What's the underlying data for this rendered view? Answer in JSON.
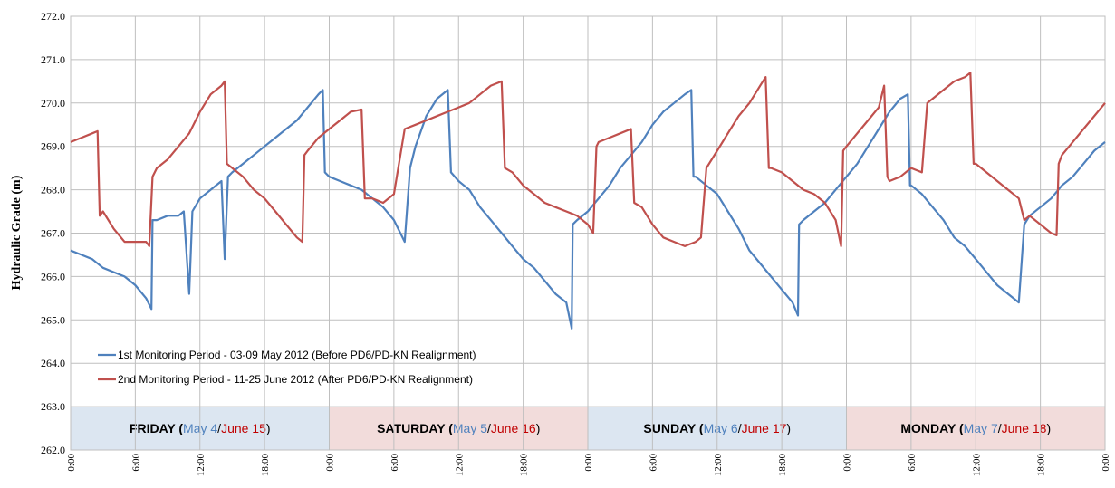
{
  "chart_data": {
    "type": "line",
    "y_label": "Hydraulic Grade (m)",
    "xlim": [
      0,
      96
    ],
    "xticks": [
      {
        "value": 0,
        "label": "0:00"
      },
      {
        "value": 6,
        "label": "6:00"
      },
      {
        "value": 12,
        "label": "12:00"
      },
      {
        "value": 18,
        "label": "18:00"
      },
      {
        "value": 24,
        "label": "0:00"
      },
      {
        "value": 30,
        "label": "6:00"
      },
      {
        "value": 36,
        "label": "12:00"
      },
      {
        "value": 42,
        "label": "18:00"
      },
      {
        "value": 48,
        "label": "0:00"
      },
      {
        "value": 54,
        "label": "6:00"
      },
      {
        "value": 60,
        "label": "12:00"
      },
      {
        "value": 66,
        "label": "18:00"
      },
      {
        "value": 72,
        "label": "0:00"
      },
      {
        "value": 78,
        "label": "6:00"
      },
      {
        "value": 84,
        "label": "12:00"
      },
      {
        "value": 90,
        "label": "18:00"
      },
      {
        "value": 96,
        "label": "0:00"
      }
    ],
    "ylim": [
      262,
      272
    ],
    "yticks": [
      {
        "value": 262,
        "label": "262.0"
      },
      {
        "value": 263,
        "label": "263.0"
      },
      {
        "value": 264,
        "label": "264.0"
      },
      {
        "value": 265,
        "label": "265.0"
      },
      {
        "value": 266,
        "label": "266.0"
      },
      {
        "value": 267,
        "label": "267.0"
      },
      {
        "value": 268,
        "label": "268.0"
      },
      {
        "value": 269,
        "label": "269.0"
      },
      {
        "value": 270,
        "label": "270.0"
      },
      {
        "value": 271,
        "label": "271.0"
      },
      {
        "value": 272,
        "label": "272.0"
      }
    ],
    "grid": true,
    "legend_position": "lower left",
    "day_bands": [
      {
        "start": 0,
        "end": 24,
        "color": "#dce6f1",
        "parts": [
          "FRIDAY (",
          "May 4",
          "/",
          "June 15",
          ")"
        ],
        "part_colors": [
          "#000000",
          "#4f81bd",
          "#000000",
          "#c00000",
          "#000000"
        ]
      },
      {
        "start": 24,
        "end": 48,
        "color": "#f2dcdb",
        "parts": [
          "SATURDAY (",
          "May 5",
          "/",
          "June 16",
          ")"
        ],
        "part_colors": [
          "#000000",
          "#4f81bd",
          "#000000",
          "#c00000",
          "#000000"
        ]
      },
      {
        "start": 48,
        "end": 72,
        "color": "#dce6f1",
        "parts": [
          "SUNDAY (",
          "May 6",
          "/",
          "June 17",
          ")"
        ],
        "part_colors": [
          "#000000",
          "#4f81bd",
          "#000000",
          "#c00000",
          "#000000"
        ]
      },
      {
        "start": 72,
        "end": 96,
        "color": "#f2dcdb",
        "parts": [
          "MONDAY (",
          "May 7",
          "/",
          "June 18",
          ")"
        ],
        "part_colors": [
          "#000000",
          "#4f81bd",
          "#000000",
          "#c00000",
          "#000000"
        ]
      }
    ],
    "series": [
      {
        "name": "1st Monitoring Period - 03-09 May 2012 (Before PD6/PD-KN Realignment)",
        "color": "#4f81bd",
        "x": [
          0,
          1,
          2,
          3,
          4,
          5,
          6,
          7,
          7.5,
          7.6,
          8,
          9,
          10,
          10.5,
          11,
          11.3,
          12,
          13,
          14,
          14.3,
          14.6,
          15,
          16,
          17,
          18,
          19,
          20,
          21,
          22,
          23,
          23.4,
          23.6,
          24,
          25,
          26,
          27,
          28,
          29,
          30,
          31,
          31.5,
          32,
          33,
          34,
          35,
          35.3,
          36,
          37,
          38,
          39,
          40,
          41,
          42,
          43,
          44,
          45,
          46,
          46.5,
          46.6,
          47,
          48,
          49,
          50,
          51,
          52,
          53,
          54,
          55,
          56,
          57,
          57.6,
          57.8,
          58,
          59,
          60,
          61,
          62,
          63,
          64,
          65,
          66,
          67,
          67.5,
          67.6,
          68,
          69,
          70,
          71,
          72,
          73,
          74,
          75,
          76,
          77,
          77.7,
          77.9,
          78,
          79,
          80,
          81,
          82,
          83,
          84,
          85,
          86,
          87,
          88,
          88.5,
          89,
          90,
          91,
          92,
          93,
          94,
          95,
          96
        ],
        "values": [
          266.6,
          266.5,
          266.4,
          266.2,
          266.1,
          266.0,
          265.8,
          265.5,
          265.25,
          267.3,
          267.3,
          267.4,
          267.4,
          267.5,
          265.6,
          267.5,
          267.8,
          268.0,
          268.2,
          266.4,
          268.3,
          268.4,
          268.6,
          268.8,
          269.0,
          269.2,
          269.4,
          269.6,
          269.9,
          270.2,
          270.3,
          268.4,
          268.3,
          268.2,
          268.1,
          268.0,
          267.8,
          267.6,
          267.3,
          266.8,
          268.5,
          269.0,
          269.7,
          270.1,
          270.3,
          268.4,
          268.2,
          268.0,
          267.6,
          267.3,
          267.0,
          266.7,
          266.4,
          266.2,
          265.9,
          265.6,
          265.4,
          264.8,
          267.2,
          267.3,
          267.5,
          267.8,
          268.1,
          268.5,
          268.8,
          269.1,
          269.5,
          269.8,
          270.0,
          270.2,
          270.3,
          268.3,
          268.3,
          268.1,
          267.9,
          267.5,
          267.1,
          266.6,
          266.3,
          266.0,
          265.7,
          265.4,
          265.1,
          267.2,
          267.3,
          267.5,
          267.7,
          268.0,
          268.3,
          268.6,
          269.0,
          269.4,
          269.8,
          270.1,
          270.2,
          268.1,
          268.1,
          267.9,
          267.6,
          267.3,
          266.9,
          266.7,
          266.4,
          266.1,
          265.8,
          265.6,
          265.4,
          267.2,
          267.4,
          267.6,
          267.8,
          268.1,
          268.3,
          268.6,
          268.9,
          269.1
        ]
      },
      {
        "name": "2nd Monitoring Period - 11-25 June 2012 (After PD6/PD-KN Realignment)",
        "color": "#c0504d",
        "x": [
          0,
          1,
          2,
          2.5,
          2.7,
          3,
          4,
          5,
          6,
          7,
          7.3,
          7.6,
          8,
          9,
          10,
          11,
          12,
          13,
          14,
          14.3,
          14.5,
          15,
          16,
          17,
          18,
          19,
          20,
          21,
          21.5,
          21.7,
          22,
          23,
          24,
          25,
          26,
          27,
          27.3,
          28,
          29,
          30,
          31,
          32,
          33,
          34,
          35,
          36,
          37,
          38,
          39,
          40,
          40.3,
          41,
          42,
          43,
          44,
          45,
          46,
          47,
          48,
          48.5,
          48.8,
          49,
          50,
          51,
          52,
          52.3,
          53,
          54,
          55,
          56,
          57,
          58,
          58.5,
          59,
          60,
          61,
          62,
          63,
          64,
          64.5,
          64.8,
          65,
          66,
          67,
          68,
          69,
          70,
          71,
          71.5,
          71.7,
          72,
          73,
          74,
          75,
          75.5,
          75.8,
          76,
          77,
          78,
          79,
          79.5,
          80,
          81,
          82,
          83,
          83.5,
          83.8,
          84,
          85,
          86,
          87,
          88,
          88.5,
          89,
          90,
          91,
          91.5,
          91.7,
          92,
          93,
          94,
          95,
          96
        ],
        "values": [
          269.1,
          269.2,
          269.3,
          269.35,
          267.4,
          267.5,
          267.1,
          266.8,
          266.8,
          266.8,
          266.7,
          268.3,
          268.5,
          268.7,
          269.0,
          269.3,
          269.8,
          270.2,
          270.4,
          270.5,
          268.6,
          268.5,
          268.3,
          268.0,
          267.8,
          267.5,
          267.2,
          266.9,
          266.8,
          268.8,
          268.9,
          269.2,
          269.4,
          269.6,
          269.8,
          269.85,
          267.8,
          267.8,
          267.7,
          267.9,
          269.4,
          269.5,
          269.6,
          269.7,
          269.8,
          269.9,
          270.0,
          270.2,
          270.4,
          270.5,
          268.5,
          268.4,
          268.1,
          267.9,
          267.7,
          267.6,
          267.5,
          267.4,
          267.2,
          267.0,
          269.0,
          269.1,
          269.2,
          269.3,
          269.4,
          267.7,
          267.6,
          267.2,
          266.9,
          266.8,
          266.7,
          266.8,
          266.9,
          268.5,
          268.9,
          269.3,
          269.7,
          270.0,
          270.4,
          270.6,
          268.5,
          268.5,
          268.4,
          268.2,
          268.0,
          267.9,
          267.7,
          267.3,
          266.7,
          268.9,
          269.0,
          269.3,
          269.6,
          269.9,
          270.4,
          268.3,
          268.2,
          268.3,
          268.5,
          268.4,
          270.0,
          270.1,
          270.3,
          270.5,
          270.6,
          270.7,
          268.6,
          268.6,
          268.4,
          268.2,
          268.0,
          267.8,
          267.3,
          267.4,
          267.2,
          267.0,
          266.95,
          268.6,
          268.8,
          269.1,
          269.4,
          269.7,
          270.0
        ]
      }
    ]
  }
}
